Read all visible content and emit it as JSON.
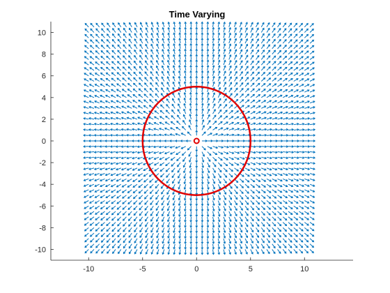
{
  "chart_data": {
    "type": "vector-field",
    "title": "Time Varying",
    "xlabel": "",
    "ylabel": "",
    "xlim": [
      -13.5,
      14.5
    ],
    "ylim": [
      -11,
      11
    ],
    "x_ticks": [
      -10,
      -5,
      0,
      5,
      10
    ],
    "y_ticks": [
      -10,
      -8,
      -6,
      -4,
      -2,
      0,
      2,
      4,
      6,
      8,
      10
    ],
    "grid": false,
    "quiver": {
      "x_range": [
        -10,
        10.5
      ],
      "y_range": [
        -10,
        10.5
      ],
      "spacing": 0.5,
      "direction": "radially outward from origin",
      "color": "#0072BD"
    },
    "circle": {
      "center": [
        0,
        0
      ],
      "radius": 5,
      "color": "#E00000"
    },
    "center_marker": {
      "x": 0,
      "y": 0,
      "marker": "o",
      "color": "#E00000"
    }
  }
}
